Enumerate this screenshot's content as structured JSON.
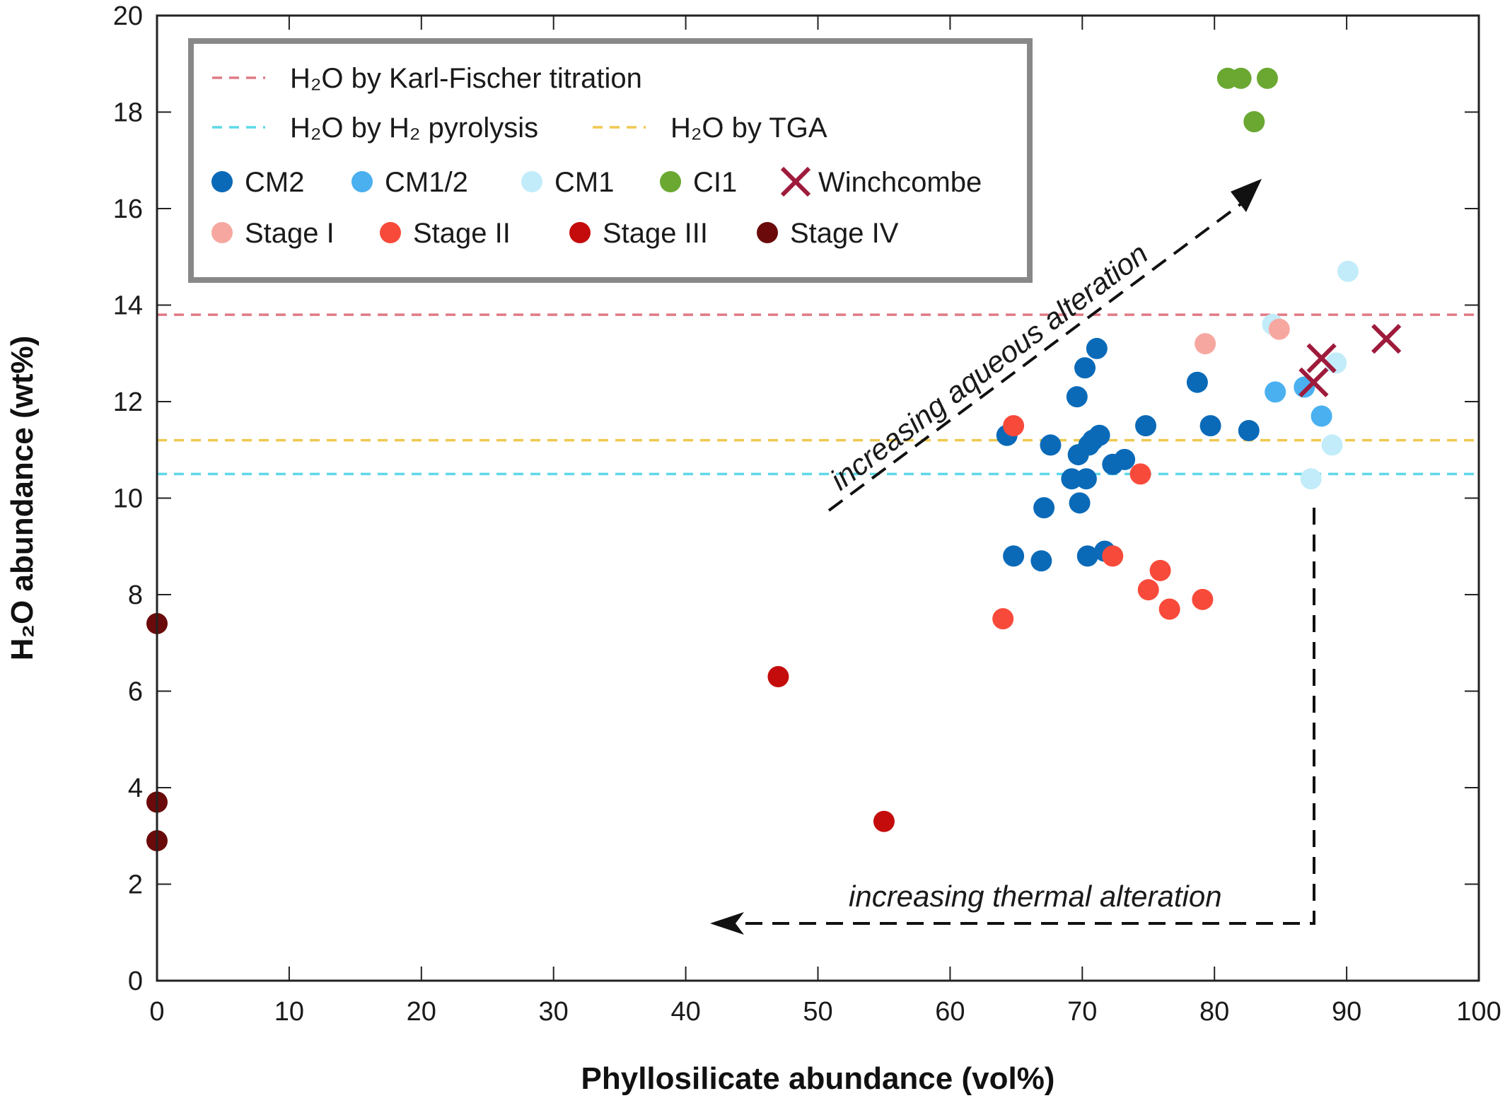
{
  "chart_data": {
    "type": "scatter",
    "title": "",
    "xlabel": "Phyllosilicate abundance (vol%)",
    "ylabel": "H₂O abundance (wt%)",
    "xlim": [
      0,
      100
    ],
    "ylim": [
      0,
      20
    ],
    "x_ticks": [
      0,
      10,
      20,
      30,
      40,
      50,
      60,
      70,
      80,
      90,
      100
    ],
    "y_ticks": [
      0,
      2,
      4,
      6,
      8,
      10,
      12,
      14,
      16,
      18,
      20
    ],
    "grid": false,
    "legend_position": "top-left",
    "reference_lines": [
      {
        "name": "H₂O by Karl-Fischer titration",
        "y": 13.8,
        "color": "#e07a86"
      },
      {
        "name": "H₂O by H₂ pyrolysis",
        "y": 10.5,
        "color": "#5fd8e8"
      },
      {
        "name": "H₂O by TGA",
        "y": 11.2,
        "color": "#f0c850"
      }
    ],
    "series": [
      {
        "name": "CM2",
        "color": "#0a6ab8",
        "marker": "circle",
        "points": [
          [
            64.3,
            11.3
          ],
          [
            64.8,
            8.8
          ],
          [
            66.9,
            8.7
          ],
          [
            67.1,
            9.8
          ],
          [
            67.6,
            11.1
          ],
          [
            69.2,
            10.4
          ],
          [
            69.6,
            12.1
          ],
          [
            69.7,
            10.9
          ],
          [
            69.8,
            9.9
          ],
          [
            70.2,
            12.7
          ],
          [
            70.3,
            10.4
          ],
          [
            70.4,
            8.8
          ],
          [
            70.5,
            11.1
          ],
          [
            70.8,
            11.2
          ],
          [
            71.1,
            13.1
          ],
          [
            71.3,
            11.3
          ],
          [
            71.7,
            8.9
          ],
          [
            72.3,
            10.7
          ],
          [
            73.2,
            10.8
          ],
          [
            74.8,
            11.5
          ],
          [
            78.7,
            12.4
          ],
          [
            79.7,
            11.5
          ],
          [
            82.6,
            11.4
          ]
        ]
      },
      {
        "name": "CM1/2",
        "color": "#4ab0f0",
        "marker": "circle",
        "points": [
          [
            84.6,
            12.2
          ],
          [
            86.8,
            12.3
          ],
          [
            88.1,
            11.7
          ]
        ]
      },
      {
        "name": "CM1",
        "color": "#c2ecfa",
        "marker": "circle",
        "points": [
          [
            84.4,
            13.6
          ],
          [
            87.3,
            10.4
          ],
          [
            88.9,
            11.1
          ],
          [
            89.2,
            12.8
          ],
          [
            90.1,
            14.7
          ]
        ]
      },
      {
        "name": "CI1",
        "color": "#6aa832",
        "marker": "circle",
        "points": [
          [
            81.0,
            18.7
          ],
          [
            82.0,
            18.7
          ],
          [
            84.0,
            18.7
          ],
          [
            83.0,
            17.8
          ]
        ]
      },
      {
        "name": "Winchcombe",
        "color": "#9e1b3c",
        "marker": "x",
        "points": [
          [
            87.5,
            12.4
          ],
          [
            88.1,
            12.9
          ],
          [
            93.0,
            13.3
          ]
        ]
      },
      {
        "name": "Stage I",
        "color": "#f6a8a0",
        "marker": "circle",
        "points": [
          [
            79.3,
            13.2
          ],
          [
            84.9,
            13.5
          ]
        ]
      },
      {
        "name": "Stage II",
        "color": "#f84a3a",
        "marker": "circle",
        "points": [
          [
            64.0,
            7.5
          ],
          [
            64.8,
            11.5
          ],
          [
            74.4,
            10.5
          ],
          [
            75.0,
            8.1
          ],
          [
            75.9,
            8.5
          ],
          [
            76.6,
            7.7
          ],
          [
            79.1,
            7.9
          ],
          [
            72.3,
            8.8
          ]
        ]
      },
      {
        "name": "Stage III",
        "color": "#c40c0c",
        "marker": "circle",
        "points": [
          [
            47.0,
            6.3
          ],
          [
            55.0,
            3.3
          ]
        ]
      },
      {
        "name": "Stage IV",
        "color": "#6a0a0a",
        "marker": "circle",
        "points": [
          [
            0,
            7.4
          ],
          [
            0,
            3.7
          ],
          [
            0,
            2.9
          ]
        ]
      }
    ],
    "annotations": [
      {
        "text": "increasing aqueous alteration"
      },
      {
        "text": "increasing thermal alteration"
      }
    ]
  }
}
